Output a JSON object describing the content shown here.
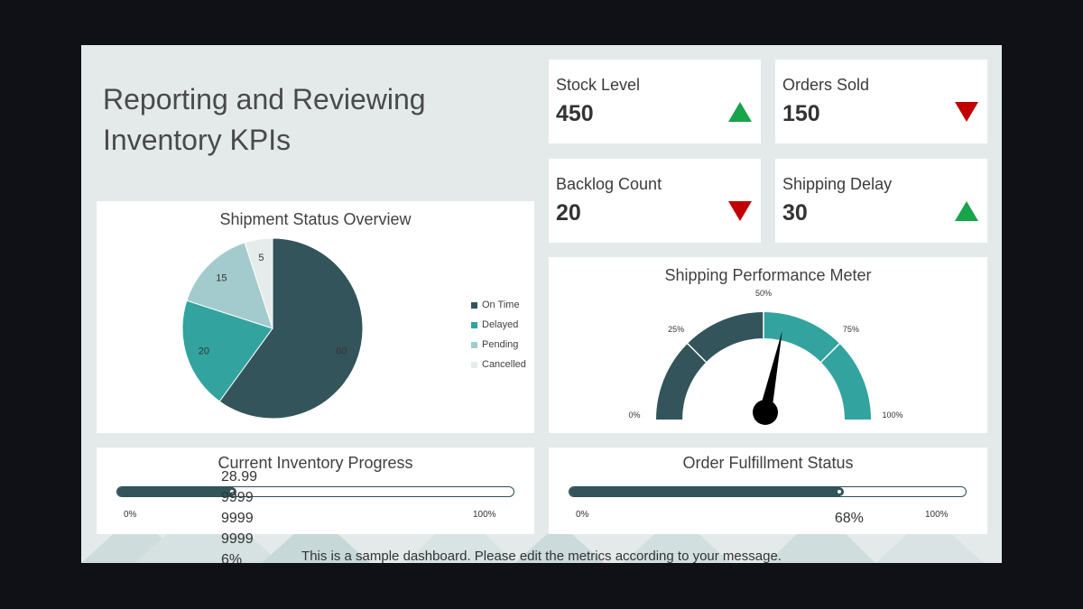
{
  "slide": {
    "title": "Reporting and Reviewing Inventory KPIs",
    "footer_note": "This is a sample dashboard. Please edit the metrics according to your message.",
    "colors": {
      "on_time": "#33545a",
      "delayed": "#33a39f",
      "pending": "#a3cbcd",
      "cancelled": "#e6ebeb",
      "up_arrow": "#17a44a",
      "down_arrow": "#c00000"
    }
  },
  "kpis": [
    {
      "label": "Stock Level",
      "value": "450",
      "trend": "up"
    },
    {
      "label": "Orders Sold",
      "value": "150",
      "trend": "down"
    },
    {
      "label": "Backlog Count",
      "value": "20",
      "trend": "down"
    },
    {
      "label": "Shipping Delay",
      "value": "30",
      "trend": "up"
    }
  ],
  "chart_data": [
    {
      "type": "pie",
      "title": "Shipment Status Overview",
      "categories": [
        "On Time",
        "Delayed",
        "Pending",
        "Cancelled"
      ],
      "values": [
        60,
        20,
        15,
        5
      ],
      "data_labels": [
        "60",
        "20",
        "15",
        "5"
      ],
      "legend": "right"
    },
    {
      "type": "gauge",
      "title": "Shipping Performance Meter",
      "tick_labels": [
        "0%",
        "25%",
        "50%",
        "75%",
        "100%"
      ],
      "value_percent": 56
    }
  ],
  "inventory_progress": {
    "title": "Current Inventory Progress",
    "min_label": "0%",
    "max_label": "100%",
    "value_percent": 28.99,
    "overflow_labels": [
      "28.99",
      "9999",
      "9999",
      "9999",
      "6%"
    ]
  },
  "order_fulfillment": {
    "title": "Order Fulfillment Status",
    "min_label": "0%",
    "max_label": "100%",
    "value_percent": 68,
    "value_label": "68%"
  }
}
